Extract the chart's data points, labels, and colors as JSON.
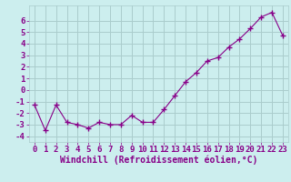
{
  "x": [
    0,
    1,
    2,
    3,
    4,
    5,
    6,
    7,
    8,
    9,
    10,
    11,
    12,
    13,
    14,
    15,
    16,
    17,
    18,
    19,
    20,
    21,
    22,
    23
  ],
  "y": [
    -1.3,
    -3.5,
    -1.3,
    -2.8,
    -3.0,
    -3.3,
    -2.8,
    -3.0,
    -3.0,
    -2.2,
    -2.8,
    -2.8,
    -1.7,
    -0.5,
    0.7,
    1.5,
    2.5,
    2.8,
    3.7,
    4.4,
    5.3,
    6.3,
    6.7,
    4.7
  ],
  "line_color": "#880088",
  "marker": "+",
  "marker_size": 4,
  "bg_color": "#cceeee",
  "grid_color": "#aacccc",
  "xlabel": "Windchill (Refroidissement éolien,°C)",
  "xlim": [
    -0.5,
    23.5
  ],
  "ylim": [
    -4.5,
    7.3
  ],
  "yticks": [
    -4,
    -3,
    -2,
    -1,
    0,
    1,
    2,
    3,
    4,
    5,
    6
  ],
  "xticks": [
    0,
    1,
    2,
    3,
    4,
    5,
    6,
    7,
    8,
    9,
    10,
    11,
    12,
    13,
    14,
    15,
    16,
    17,
    18,
    19,
    20,
    21,
    22,
    23
  ],
  "tick_color": "#880088",
  "label_color": "#880088",
  "font_size": 6.5,
  "xlabel_font_size": 7.0
}
